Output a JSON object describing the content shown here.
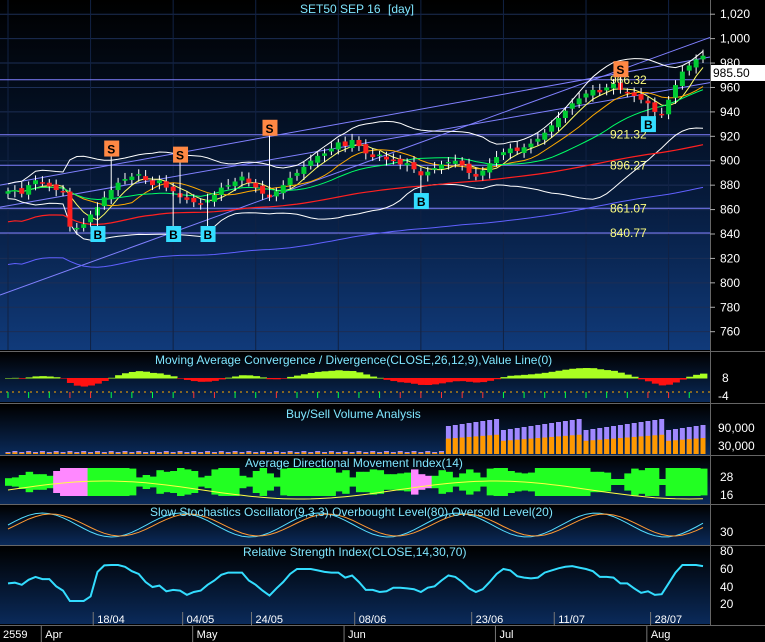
{
  "chart_data": [
    {
      "type": "candlestick",
      "title": "SET50 SEP 16",
      "interval": "[day]",
      "ylim": [
        745,
        1030
      ],
      "y_ticks": [
        1020,
        1000,
        980,
        960,
        940,
        920,
        900,
        880,
        860,
        840,
        820,
        800,
        780,
        760
      ],
      "last_price": "985.50",
      "levels": [
        {
          "value": 966.32,
          "label": "966.32"
        },
        {
          "value": 921.32,
          "label": "921.32"
        },
        {
          "value": 896.27,
          "label": "896.27"
        },
        {
          "value": 861.07,
          "label": "861.07"
        },
        {
          "value": 840.77,
          "label": "840.77"
        }
      ],
      "close": [
        875,
        876,
        873,
        880,
        884,
        882,
        879,
        876,
        874,
        846,
        845,
        848,
        856,
        862,
        870,
        876,
        882,
        885,
        887,
        889,
        884,
        880,
        884,
        878,
        875,
        870,
        868,
        866,
        865,
        868,
        872,
        878,
        880,
        883,
        887,
        882,
        878,
        873,
        870,
        875,
        880,
        886,
        890,
        895,
        900,
        904,
        906,
        910,
        915,
        912,
        917,
        912,
        906,
        903,
        905,
        901,
        900,
        897,
        898,
        893,
        888,
        891,
        894,
        897,
        899,
        900,
        896,
        890,
        887,
        892,
        898,
        903,
        907,
        910,
        908,
        911,
        914,
        918,
        923,
        929,
        935,
        941,
        947,
        951,
        955,
        958,
        956,
        960,
        963,
        958,
        956,
        953,
        950,
        947,
        940,
        938,
        950,
        962,
        973,
        978,
        983,
        986
      ],
      "signals": [
        {
          "type": "S",
          "value": 910
        },
        {
          "type": "B",
          "value": 840
        },
        {
          "type": "S",
          "value": 905
        },
        {
          "type": "B",
          "value": 840
        },
        {
          "type": "B",
          "value": 840
        },
        {
          "type": "S",
          "value": 927
        },
        {
          "type": "B",
          "value": 867
        },
        {
          "type": "S",
          "value": 975
        },
        {
          "type": "B",
          "value": 930
        }
      ]
    },
    {
      "type": "area",
      "title": "Moving Average Convergence / Divergence(CLOSE,26,12,9),Value Line(0)",
      "y_ticks": [
        "8",
        "-4"
      ]
    },
    {
      "type": "bar",
      "title": "Buy/Sell Volume Analysis",
      "y_ticks": [
        "90,000",
        "30,000"
      ]
    },
    {
      "type": "area",
      "title": "Average Directional Movement Index(14)",
      "y_ticks": [
        "28",
        "16"
      ]
    },
    {
      "type": "line",
      "title": "Slow Stochastics Oscillator(9,3,3),Overbought Level(80),Oversold Level(20)",
      "y_ticks": [
        "30"
      ]
    },
    {
      "type": "line",
      "title": "Relative Strength Index(CLOSE,14,30,70)",
      "y_ticks": [
        "80",
        "60",
        "40",
        "20"
      ]
    }
  ],
  "x_axis": {
    "year": "2559",
    "dates": [
      "18/04",
      "04/05",
      "24/05",
      "08/06",
      "23/06",
      "11/07",
      "28/07"
    ],
    "months": [
      "Apr",
      "May",
      "Jun",
      "Jul",
      "Aug"
    ]
  },
  "colors": {
    "up": "#00cc33",
    "down": "#ff2020",
    "channel": "#8080ff",
    "buy_badge": "#33ddff",
    "sell_badge": "#ff8844",
    "level_text": "#ffff80"
  }
}
